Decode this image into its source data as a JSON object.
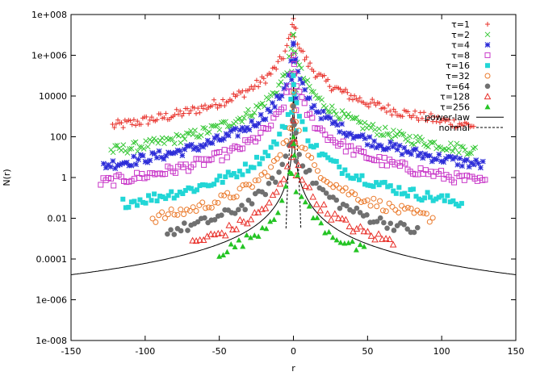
{
  "chart_data": {
    "type": "scatter",
    "title": "",
    "xlabel": "r",
    "ylabel": "N(r)",
    "xlim": [
      -150,
      150
    ],
    "ylim_log10": [
      -8,
      8
    ],
    "y_scale": "log",
    "grid": false,
    "legend_position": "top-right",
    "x_ticks": [
      "-150",
      "-100",
      "-50",
      "0",
      "50",
      "100",
      "150"
    ],
    "x_tick_values": [
      -150,
      -100,
      -50,
      0,
      50,
      100,
      150
    ],
    "y_ticks": [
      "1e-008",
      "1e-006",
      "0.0001",
      "0.01",
      "1",
      "100",
      "10000",
      "1e+006",
      "1e+008"
    ],
    "y_tick_values_log10": [
      -8,
      -6,
      -4,
      -2,
      0,
      2,
      4,
      6,
      8
    ],
    "series": [
      {
        "name": "τ=1",
        "marker": "plus",
        "color": "#e8302a",
        "peak": 7.8,
        "b": 0.48,
        "rmax": 122,
        "floor": 0.0
      },
      {
        "name": "τ=2",
        "marker": "cross",
        "color": "#37c837",
        "peak": 7.0,
        "b": 0.62,
        "rmax": 123,
        "floor": -0.7
      },
      {
        "name": "τ=4",
        "marker": "star",
        "color": "#2c2cd8",
        "peak": 6.6,
        "b": 0.72,
        "rmax": 128,
        "floor": -1.7
      },
      {
        "name": "τ=8",
        "marker": "open-square",
        "color": "#c838c8",
        "peak": 6.0,
        "b": 0.82,
        "rmax": 130,
        "floor": -3.0
      },
      {
        "name": "τ=16",
        "marker": "filled-square",
        "color": "#22d6d6",
        "peak": 5.0,
        "b": 0.9,
        "rmax": 115,
        "floor": -4.0
      },
      {
        "name": "τ=32",
        "marker": "open-circle",
        "color": "#ea7a2c",
        "peak": 4.2,
        "b": 1.0,
        "rmax": 95,
        "floor": -5.0
      },
      {
        "name": "τ=64",
        "marker": "filled-circle",
        "color": "#707070",
        "peak": 3.5,
        "b": 1.06,
        "rmax": 85,
        "floor": -6.0
      },
      {
        "name": "τ=128",
        "marker": "open-triangle",
        "color": "#e8302a",
        "peak": 2.8,
        "b": 1.13,
        "rmax": 68,
        "floor": -7.0
      },
      {
        "name": "τ=256",
        "marker": "filled-triangle",
        "color": "#24c424",
        "peak": 2.0,
        "b": 1.2,
        "rmax": 50,
        "floor": -7.8
      }
    ],
    "curves": [
      {
        "name": "power-law",
        "style": "solid",
        "color": "#000000"
      },
      {
        "name": "normal",
        "style": "dashed",
        "color": "#000000"
      }
    ]
  }
}
